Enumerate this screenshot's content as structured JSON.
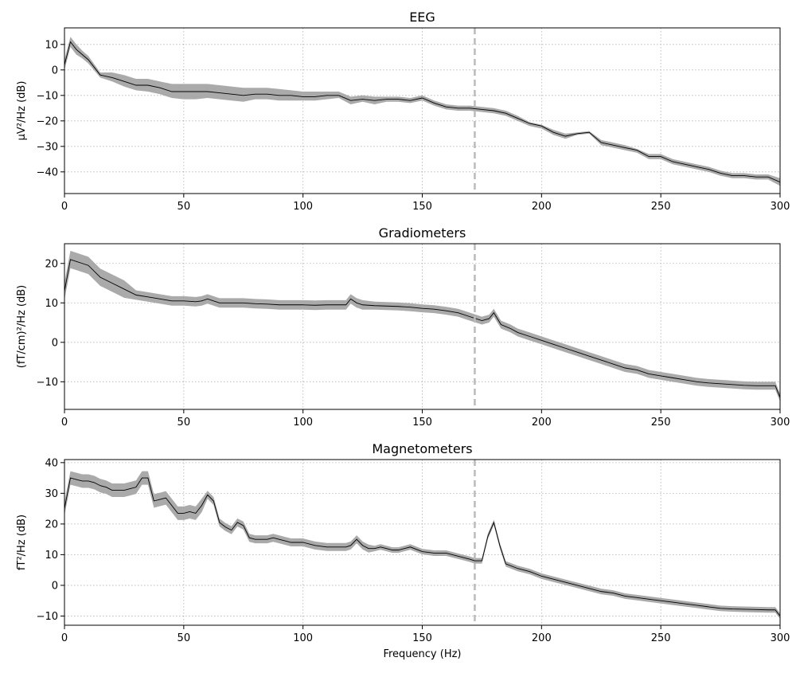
{
  "chart_data": [
    {
      "type": "area",
      "title": "EEG",
      "xlabel": "",
      "ylabel": "µV²/Hz (dB)",
      "xlim": [
        0,
        300
      ],
      "ylim": [
        -48.5,
        16.5
      ],
      "xticks": [
        0,
        50,
        100,
        150,
        200,
        250,
        300
      ],
      "yticks": [
        -40,
        -30,
        -20,
        -10,
        0,
        10
      ],
      "grid": true,
      "vline": 172,
      "series": [
        {
          "x": [
            0,
            2.5,
            5,
            7.5,
            10,
            15,
            20,
            25,
            30,
            35,
            40,
            45,
            50,
            55,
            60,
            65,
            70,
            75,
            80,
            85,
            90,
            95,
            100,
            105,
            110,
            115,
            120,
            125,
            130,
            135,
            140,
            145,
            150,
            155,
            160,
            165,
            170,
            175,
            180,
            185,
            190,
            195,
            200,
            205,
            210,
            215,
            220,
            225,
            230,
            235,
            240,
            245,
            250,
            255,
            260,
            265,
            270,
            275,
            280,
            285,
            290,
            295,
            300
          ],
          "mean": [
            2,
            11,
            8,
            6,
            4,
            -2,
            -3,
            -4.5,
            -6,
            -6,
            -7,
            -8.5,
            -8.5,
            -8.5,
            -8.5,
            -9,
            -9.5,
            -10,
            -9.5,
            -9.5,
            -10,
            -10,
            -10.5,
            -10.5,
            -10,
            -10,
            -12,
            -11.5,
            -12,
            -11.5,
            -11.5,
            -12,
            -11,
            -13,
            -14.5,
            -15,
            -15,
            -15.5,
            -16,
            -17,
            -19,
            -21,
            -22,
            -24.5,
            -26,
            -25,
            -24.5,
            -28.5,
            -29.5,
            -30.5,
            -31.5,
            -34,
            -34,
            -36,
            -37,
            -38,
            -39,
            -40.5,
            -41.5,
            -41.5,
            -42,
            -42,
            -44
          ],
          "upper": [
            4,
            13,
            10,
            7.5,
            5.5,
            -1,
            -1,
            -2,
            -3.5,
            -3.5,
            -4.5,
            -5.5,
            -5.5,
            -5.5,
            -5.5,
            -6,
            -6.5,
            -7,
            -7,
            -7,
            -7.5,
            -8,
            -8.5,
            -8.5,
            -8.5,
            -8.5,
            -10.5,
            -10,
            -10.5,
            -10.5,
            -10.5,
            -11,
            -10,
            -12,
            -13.5,
            -14,
            -14,
            -14.5,
            -15,
            -16,
            -18,
            -20.5,
            -21.5,
            -23.5,
            -25,
            -24.5,
            -24,
            -27.5,
            -28.5,
            -29.5,
            -31,
            -33,
            -33,
            -35,
            -36,
            -37,
            -38,
            -39.5,
            -40.5,
            -40.5,
            -41,
            -41,
            -42.5
          ],
          "lower": [
            0,
            9,
            6,
            4.5,
            2.5,
            -3,
            -4.5,
            -6.5,
            -8,
            -8.5,
            -9.5,
            -11,
            -11.5,
            -11.5,
            -11,
            -11.5,
            -12,
            -12.5,
            -11.5,
            -11.5,
            -12,
            -12,
            -12,
            -12,
            -11.5,
            -11,
            -13.5,
            -12.5,
            -13.5,
            -12.5,
            -12.5,
            -13,
            -12,
            -14,
            -15.5,
            -16,
            -16,
            -16.5,
            -17,
            -18,
            -20,
            -22,
            -23,
            -25.5,
            -27,
            -25.5,
            -25,
            -29.5,
            -30.5,
            -31.5,
            -32.5,
            -35,
            -35,
            -37,
            -38,
            -39,
            -40,
            -41.5,
            -42.5,
            -42.5,
            -43,
            -43,
            -45.5
          ]
        }
      ]
    },
    {
      "type": "area",
      "title": "Gradiometers",
      "xlabel": "",
      "ylabel": "(fT/cm)²/Hz (dB)",
      "xlim": [
        0,
        300
      ],
      "ylim": [
        -17,
        25
      ],
      "xticks": [
        0,
        50,
        100,
        150,
        200,
        250,
        300
      ],
      "yticks": [
        -10,
        0,
        10,
        20
      ],
      "grid": true,
      "vline": 172,
      "series": [
        {
          "x": [
            0,
            2.5,
            5,
            7.5,
            10,
            15,
            20,
            25,
            30,
            35,
            40,
            45,
            50,
            55,
            57.5,
            60,
            65,
            70,
            75,
            80,
            85,
            90,
            95,
            100,
            105,
            110,
            115,
            118,
            120,
            122.5,
            125,
            130,
            135,
            140,
            145,
            150,
            155,
            160,
            165,
            170,
            175,
            178,
            180,
            183,
            187,
            190,
            195,
            200,
            205,
            210,
            215,
            220,
            225,
            230,
            235,
            240,
            245,
            250,
            255,
            260,
            265,
            270,
            275,
            280,
            285,
            290,
            295,
            298,
            300
          ],
          "mean": [
            13,
            21,
            20.5,
            20,
            19.5,
            16.5,
            15,
            13.5,
            12,
            11.5,
            11,
            10.5,
            10.5,
            10.3,
            10.5,
            11,
            10,
            10,
            10,
            9.8,
            9.7,
            9.5,
            9.5,
            9.5,
            9.4,
            9.5,
            9.5,
            9.5,
            11,
            10,
            9.5,
            9.3,
            9.2,
            9.1,
            8.9,
            8.6,
            8.4,
            8,
            7.5,
            6.5,
            5.5,
            6,
            7.5,
            4.5,
            3.5,
            2.5,
            1.5,
            0.5,
            -0.5,
            -1.5,
            -2.5,
            -3.5,
            -4.5,
            -5.5,
            -6.5,
            -7,
            -8,
            -8.5,
            -9,
            -9.5,
            -10,
            -10.3,
            -10.5,
            -10.7,
            -10.9,
            -11,
            -11,
            -11,
            -14
          ]
        }
      ]
    },
    {
      "type": "area",
      "title": "Magnetometers",
      "xlabel": "Frequency (Hz)",
      "ylabel": "fT²/Hz (dB)",
      "xlim": [
        0,
        300
      ],
      "ylim": [
        -13,
        41
      ],
      "xticks": [
        0,
        50,
        100,
        150,
        200,
        250,
        300
      ],
      "yticks": [
        -10,
        0,
        10,
        20,
        30,
        40
      ],
      "grid": true,
      "vline": 172,
      "series": [
        {
          "x": [
            0,
            2.5,
            5,
            7.5,
            10,
            12.5,
            15,
            17.5,
            20,
            22.5,
            25,
            27.5,
            30,
            32.5,
            35,
            37.5,
            40,
            42.5,
            45,
            47.5,
            50,
            52.5,
            55,
            57.5,
            60,
            62.5,
            65,
            67.5,
            70,
            72.5,
            75,
            77.5,
            80,
            82.5,
            85,
            87.5,
            90,
            92.5,
            95,
            97.5,
            100,
            105,
            110,
            115,
            118,
            120,
            122.5,
            125,
            127.5,
            130,
            132.5,
            135,
            137.5,
            140,
            142.5,
            145,
            150,
            155,
            160,
            165,
            170,
            172,
            175,
            177.5,
            180,
            182.5,
            185,
            190,
            195,
            200,
            205,
            210,
            215,
            220,
            225,
            230,
            235,
            240,
            245,
            250,
            255,
            260,
            265,
            270,
            275,
            280,
            285,
            290,
            295,
            298,
            300
          ],
          "mean": [
            25,
            35,
            34.5,
            34,
            34,
            33.5,
            32.5,
            32,
            31,
            31,
            31,
            31.5,
            32,
            35,
            35,
            27.5,
            28,
            28.5,
            26,
            23.5,
            23.5,
            24,
            23.5,
            26,
            29.5,
            27.5,
            20.5,
            19,
            18,
            20.5,
            19.5,
            15.5,
            15,
            15,
            15,
            15.5,
            15,
            14.5,
            14,
            14,
            14,
            13,
            12.5,
            12.5,
            12.5,
            13,
            15,
            13,
            12,
            12,
            12.5,
            12,
            11.5,
            11.5,
            12,
            12.5,
            11,
            10.5,
            10.5,
            9.5,
            8.5,
            8,
            8,
            16,
            20.5,
            13,
            7,
            5.5,
            4.5,
            3,
            2,
            1,
            0,
            -1,
            -2,
            -2.5,
            -3.5,
            -4,
            -4.5,
            -5,
            -5.5,
            -6,
            -6.5,
            -7,
            -7.5,
            -7.7,
            -7.8,
            -7.9,
            -8,
            -8,
            -10
          ]
        }
      ]
    }
  ]
}
